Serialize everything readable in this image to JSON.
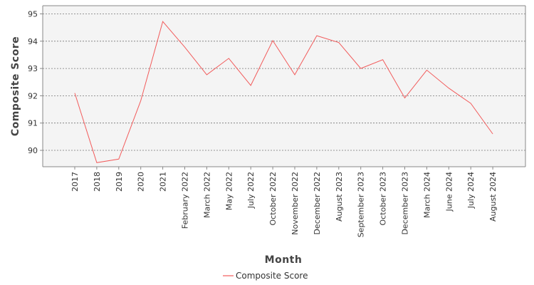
{
  "chart_data": {
    "type": "line",
    "xlabel": "Month",
    "ylabel": "Composite Score",
    "ylim": [
      89.4,
      95.3
    ],
    "yticks": [
      90,
      91,
      92,
      93,
      94,
      95
    ],
    "grid": true,
    "legend_position": "bottom-center",
    "categories": [
      "2017",
      "2018",
      "2019",
      "2020",
      "2021",
      "February 2022",
      "March 2022",
      "May 2022",
      "July 2022",
      "October 2022",
      "November 2022",
      "December 2022",
      "August 2023",
      "September 2023",
      "October 2023",
      "December 2023",
      "March 2024",
      "June 2024",
      "July 2024",
      "August 2024"
    ],
    "series": [
      {
        "name": "Composite Score",
        "color": "#f25c5c",
        "values": [
          92.1,
          89.55,
          89.68,
          91.82,
          94.72,
          93.78,
          92.77,
          93.37,
          92.38,
          94.02,
          92.77,
          94.2,
          93.95,
          93.0,
          93.32,
          91.92,
          92.94,
          92.28,
          91.72,
          90.6
        ]
      }
    ]
  }
}
